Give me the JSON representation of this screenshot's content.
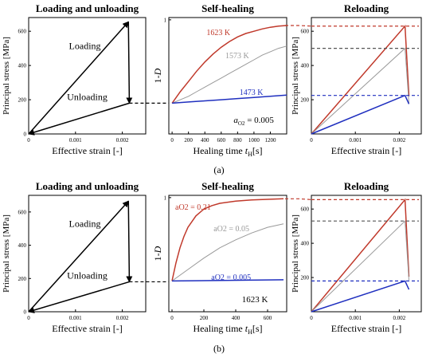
{
  "row_labels": [
    "(a)",
    "(b)"
  ],
  "axis_text": {
    "stress_ylabel": "Principal stress [MPa]",
    "damage_ylabel_prefix": "1-",
    "damage_ylabel_var": "D",
    "strain_xlabel": "Effective strain [-]",
    "healing_xlabel_prefix": "Healing time ",
    "healing_xlabel_var": "t",
    "healing_xlabel_sub": "H",
    "healing_xlabel_suffix": "[s]"
  },
  "colors": {
    "red": "#c0392b",
    "gray": "#999999",
    "blue": "#1f2fbf",
    "black": "#000000",
    "dashed_gray": "#555555"
  },
  "chart_data": [
    {
      "type": "line",
      "row": "a",
      "panel": "loading",
      "title": "Loading and unloading",
      "xlabel": "Effective strain [-]",
      "ylabel": "Principal stress [MPa]",
      "xlim": [
        0,
        0.0025
      ],
      "ylim": [
        0,
        680
      ],
      "xticks": [
        0,
        0.001,
        0.002
      ],
      "xtick_labels": [
        "0",
        "0.001",
        "0.002"
      ],
      "yticks": [
        0,
        200,
        400,
        600
      ],
      "ytick_labels": [
        "0",
        "200",
        "400",
        "600"
      ],
      "path": [
        [
          0,
          0
        ],
        [
          0.00213,
          655
        ],
        [
          0.00215,
          180
        ],
        [
          0,
          0
        ]
      ],
      "annotations": [
        "Loading",
        "Unloading"
      ]
    },
    {
      "type": "line",
      "row": "a",
      "panel": "healing",
      "title": "Self-healing",
      "xlabel": "Healing time tH[s]",
      "ylabel": "1-D",
      "xlim": [
        -40,
        1400
      ],
      "ylim": [
        0,
        1.02
      ],
      "xticks": [
        0,
        200,
        400,
        600,
        800,
        1000,
        1200
      ],
      "xtick_labels": [
        "0",
        "200",
        "400",
        "600",
        "800",
        "1000",
        "1200"
      ],
      "yticks": [
        1
      ],
      "ytick_labels": [
        "1"
      ],
      "series": [
        {
          "name": "1623 K",
          "color": "red",
          "x": [
            0,
            100,
            200,
            300,
            400,
            500,
            600,
            700,
            800,
            900,
            1000,
            1100,
            1200,
            1300,
            1400
          ],
          "y": [
            0.27,
            0.37,
            0.46,
            0.55,
            0.63,
            0.7,
            0.76,
            0.81,
            0.85,
            0.88,
            0.9,
            0.92,
            0.935,
            0.945,
            0.95
          ]
        },
        {
          "name": "1573 K",
          "color": "gray",
          "x": [
            0,
            100,
            200,
            300,
            400,
            500,
            600,
            700,
            800,
            900,
            1000,
            1100,
            1200,
            1300,
            1400
          ],
          "y": [
            0.27,
            0.3,
            0.33,
            0.37,
            0.41,
            0.45,
            0.49,
            0.53,
            0.57,
            0.61,
            0.65,
            0.69,
            0.72,
            0.75,
            0.77
          ]
        },
        {
          "name": "1473 K",
          "color": "blue",
          "x": [
            0,
            200,
            400,
            600,
            800,
            1000,
            1200,
            1400
          ],
          "y": [
            0.27,
            0.28,
            0.29,
            0.3,
            0.31,
            0.32,
            0.33,
            0.34
          ]
        }
      ],
      "annotations": [
        {
          "text": "a",
          "sub": "O2",
          "eq": " = 0.005"
        }
      ]
    },
    {
      "type": "line",
      "row": "a",
      "panel": "reloading",
      "title": "Reloading",
      "xlabel": "Effective strain [-]",
      "ylabel": "Principal stress [MPa]",
      "xlim": [
        0,
        0.0025
      ],
      "ylim": [
        0,
        680
      ],
      "xticks": [
        0,
        0.001,
        0.002
      ],
      "xtick_labels": [
        "0",
        "0.001",
        "0.002"
      ],
      "yticks": [
        200,
        400,
        600
      ],
      "ytick_labels": [
        "200",
        "400",
        "600"
      ],
      "series": [
        {
          "name": "1623 K",
          "color": "red",
          "x": [
            0,
            0.00213,
            0.00222
          ],
          "y": [
            0,
            630,
            220
          ],
          "ref": 630
        },
        {
          "name": "1573 K",
          "color": "gray",
          "x": [
            0,
            0.00213,
            0.00222
          ],
          "y": [
            0,
            500,
            180
          ],
          "ref": 500
        },
        {
          "name": "1473 K",
          "color": "blue",
          "x": [
            0,
            0.00213,
            0.00222
          ],
          "y": [
            0,
            225,
            175
          ],
          "ref": 225
        }
      ]
    },
    {
      "type": "line",
      "row": "b",
      "panel": "loading",
      "title": "Loading and unloading",
      "xlabel": "Effective strain [-]",
      "ylabel": "Principal stress [MPa]",
      "xlim": [
        0,
        0.0025
      ],
      "ylim": [
        0,
        700
      ],
      "xticks": [
        0,
        0.001,
        0.002
      ],
      "xtick_labels": [
        "0",
        "0.001",
        "0.002"
      ],
      "yticks": [
        0,
        200,
        400,
        600
      ],
      "ytick_labels": [
        "0",
        "200",
        "400",
        "600"
      ],
      "path": [
        [
          0,
          0
        ],
        [
          0.00213,
          665
        ],
        [
          0.00215,
          180
        ],
        [
          0,
          0
        ]
      ],
      "annotations": [
        "Loading",
        "Unloading"
      ]
    },
    {
      "type": "line",
      "row": "b",
      "panel": "healing",
      "title": "Self-healing",
      "xlabel": "Healing time tH[s]",
      "ylabel": "1-D",
      "xlim": [
        -20,
        720
      ],
      "ylim": [
        0,
        1.02
      ],
      "xticks": [
        0,
        200,
        400,
        600
      ],
      "xtick_labels": [
        "0",
        "200",
        "400",
        "600"
      ],
      "yticks": [
        1
      ],
      "ytick_labels": [
        "1"
      ],
      "series": [
        {
          "name": "aO2 = 0.21",
          "color": "red",
          "x": [
            0,
            25,
            50,
            75,
            100,
            150,
            200,
            250,
            300,
            400,
            500,
            600,
            700
          ],
          "y": [
            0.27,
            0.43,
            0.56,
            0.66,
            0.74,
            0.84,
            0.9,
            0.93,
            0.95,
            0.97,
            0.98,
            0.985,
            0.99
          ]
        },
        {
          "name": "aO2 = 0.05",
          "color": "gray",
          "x": [
            0,
            100,
            200,
            300,
            400,
            500,
            600,
            700
          ],
          "y": [
            0.27,
            0.37,
            0.47,
            0.56,
            0.63,
            0.69,
            0.74,
            0.77
          ]
        },
        {
          "name": "aO2 = 0.005",
          "color": "blue",
          "x": [
            0,
            700
          ],
          "y": [
            0.27,
            0.28
          ]
        }
      ],
      "annotations": [
        {
          "text": "1623 K"
        }
      ]
    },
    {
      "type": "line",
      "row": "b",
      "panel": "reloading",
      "title": "Reloading",
      "xlabel": "Effective strain [-]",
      "ylabel": "Principal stress [MPa]",
      "xlim": [
        0,
        0.0025
      ],
      "ylim": [
        0,
        680
      ],
      "xticks": [
        0,
        0.001,
        0.002
      ],
      "xtick_labels": [
        "0",
        "0.001",
        "0.002"
      ],
      "yticks": [
        200,
        400,
        600
      ],
      "ytick_labels": [
        "200",
        "400",
        "600"
      ],
      "series": [
        {
          "name": "aO2 = 0.21",
          "color": "red",
          "x": [
            0,
            0.00213,
            0.00222
          ],
          "y": [
            0,
            655,
            205
          ],
          "ref": 655
        },
        {
          "name": "aO2 = 0.05",
          "color": "gray",
          "x": [
            0,
            0.00213,
            0.00222
          ],
          "y": [
            0,
            530,
            185
          ],
          "ref": 530
        },
        {
          "name": "aO2 = 0.005",
          "color": "blue",
          "x": [
            0,
            0.00213,
            0.00222
          ],
          "y": [
            0,
            180,
            130
          ],
          "ref": 180
        }
      ]
    }
  ]
}
